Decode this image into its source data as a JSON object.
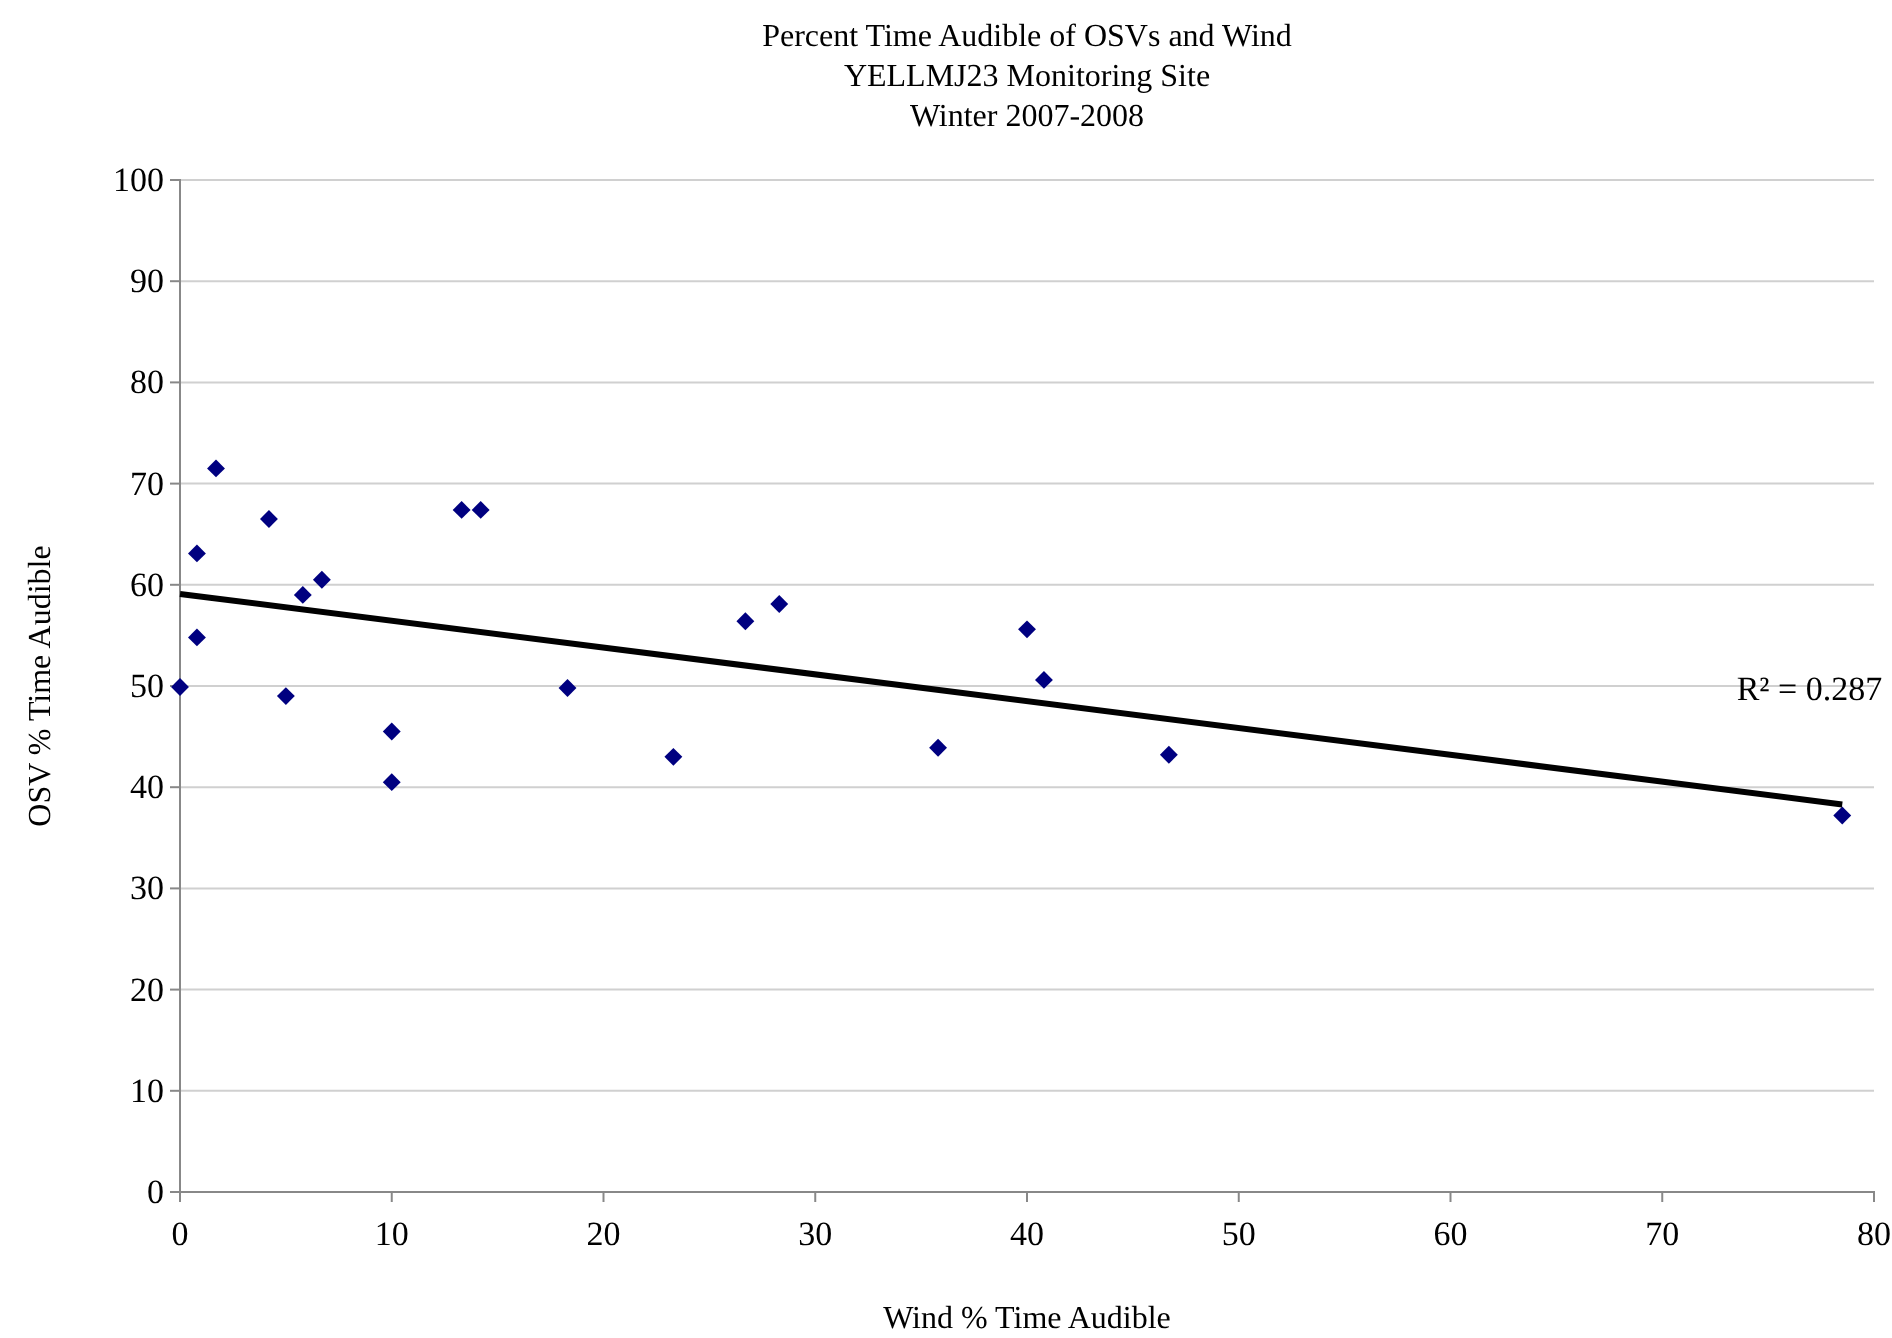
{
  "chart_data": {
    "type": "scatter",
    "title": "Percent Time Audible of OSVs and Wind",
    "subtitle": "YELLMJ23 Monitoring Site\nWinter 2007-2008",
    "xlabel": "Wind % Time Audible",
    "ylabel": "OSV % Time Audible",
    "xlim": [
      0,
      80
    ],
    "xticks": [
      0,
      10,
      20,
      30,
      40,
      50,
      60,
      70,
      80
    ],
    "ylim": [
      0,
      100
    ],
    "yticks": [
      0,
      10,
      20,
      30,
      40,
      50,
      60,
      70,
      80,
      90,
      100
    ],
    "grid": "y",
    "marker": "diamond",
    "annotations": [
      "R² = 0.287"
    ],
    "series": [
      {
        "color": "#000080",
        "x": [
          0,
          0.8,
          0.8,
          1.7,
          4.2,
          5.0,
          5.8,
          6.7,
          10.0,
          10.0,
          13.3,
          14.2,
          18.3,
          23.3,
          26.7,
          28.3,
          35.8,
          40.0,
          40.8,
          46.7,
          78.5
        ],
        "values": [
          49.9,
          63.1,
          54.8,
          71.5,
          66.5,
          49.0,
          59.0,
          60.5,
          45.5,
          40.5,
          67.4,
          67.4,
          49.8,
          43.0,
          56.4,
          58.1,
          43.9,
          55.6,
          50.6,
          43.2,
          37.2
        ]
      },
      {
        "type": "line",
        "color": "#000000",
        "line_style": "solid",
        "marker": "none",
        "x": [
          0,
          78.5
        ],
        "values": [
          59.1,
          38.3
        ]
      }
    ]
  }
}
